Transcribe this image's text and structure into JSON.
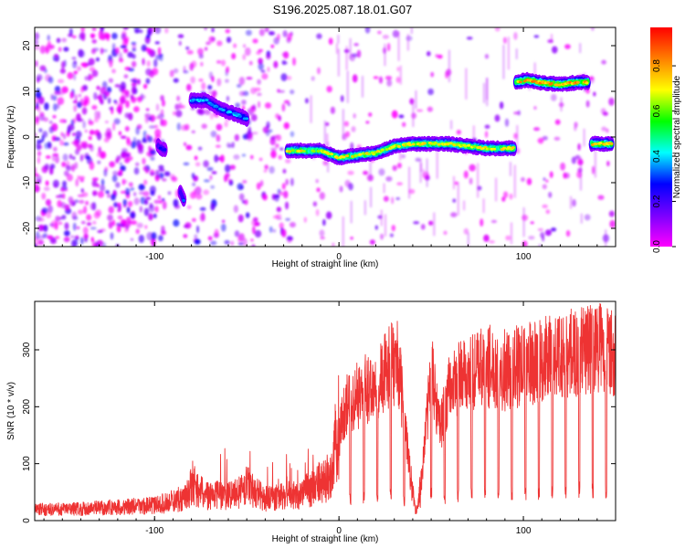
{
  "title": "S196.2025.087.18.01.G07",
  "chart_data": [
    {
      "type": "heatmap",
      "xlabel": "Height of straight line (km)",
      "ylabel": "Frequency (Hz)",
      "xlim": [
        -165,
        150
      ],
      "ylim": [
        -24,
        24
      ],
      "xticks": [
        -100,
        0,
        100
      ],
      "yticks": [
        -20,
        -10,
        0,
        10,
        20
      ],
      "colorbar": {
        "label": "Normalized spectral amplitude",
        "range": [
          0,
          0.97
        ],
        "ticks": [
          "0.0",
          "0.2",
          "0.4",
          "0.6",
          "0.8"
        ],
        "colormap": [
          "#ff00ff",
          "#7a00ff",
          "#0000ff",
          "#00ffff",
          "#00ff00",
          "#ffff00",
          "#ff7f00",
          "#ff0000"
        ]
      },
      "ridges": [
        {
          "x": [
            -28,
            -10,
            0,
            10,
            20,
            30,
            40,
            50,
            60,
            70,
            80,
            95
          ],
          "freq": [
            -3,
            -3,
            -4.5,
            -4,
            -3.5,
            -2,
            -1.5,
            -1.5,
            -1.5,
            -2,
            -2.5,
            -2.5
          ],
          "amp": 0.75
        },
        {
          "x": [
            96,
            102,
            108,
            120,
            130,
            135
          ],
          "freq": [
            12,
            12.5,
            12,
            11.5,
            12,
            12
          ],
          "amp": 0.85
        },
        {
          "x": [
            137,
            142,
            148
          ],
          "freq": [
            -1.5,
            -1.5,
            -1.5
          ],
          "amp": 0.8
        },
        {
          "x": [
            -80,
            -72,
            -64,
            -56,
            -50
          ],
          "freq": [
            8,
            8,
            6,
            5,
            4
          ],
          "amp": 0.4
        },
        {
          "x": [
            -98,
            -94
          ],
          "freq": [
            -2,
            -3
          ],
          "amp": 0.3
        },
        {
          "x": [
            -86,
            -84
          ],
          "freq": [
            -12,
            -14
          ],
          "amp": 0.35
        }
      ]
    },
    {
      "type": "line",
      "xlabel": "Height of straight line (km)",
      "ylabel": "SNR (10 * v/v)",
      "xlim": [
        -165,
        150
      ],
      "ylim": [
        0,
        385
      ],
      "xticks": [
        -100,
        0,
        100
      ],
      "yticks": [
        0,
        100,
        200,
        300
      ],
      "color": "#ee3333",
      "series": [
        {
          "x": [
            -165,
            -140,
            -120,
            -100,
            -85,
            -80,
            -70,
            -55,
            -50,
            -40,
            -30,
            -20,
            -10,
            -5,
            0,
            3,
            8,
            15,
            22,
            28,
            32,
            36,
            40,
            42,
            45,
            50,
            55,
            60,
            65,
            70,
            80,
            90,
            100,
            110,
            120,
            130,
            140,
            150
          ],
          "y": [
            20,
            22,
            25,
            28,
            40,
            60,
            45,
            50,
            65,
            40,
            45,
            50,
            70,
            80,
            180,
            240,
            260,
            280,
            300,
            330,
            340,
            200,
            60,
            20,
            100,
            320,
            200,
            280,
            300,
            310,
            330,
            320,
            330,
            340,
            350,
            360,
            370,
            350
          ]
        }
      ]
    }
  ]
}
